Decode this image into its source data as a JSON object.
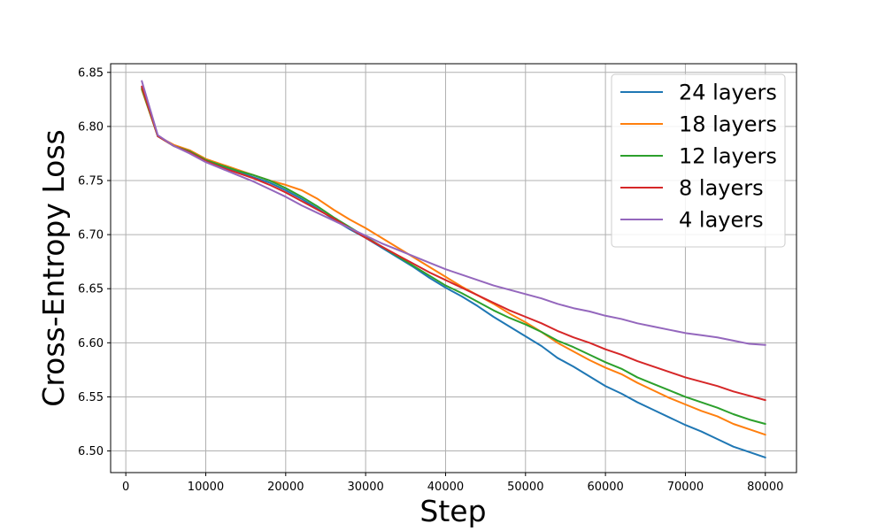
{
  "chart_data": {
    "type": "line",
    "title": "",
    "xlabel": "Step",
    "ylabel": "Cross-Entropy Loss",
    "xlim": [
      -1900,
      83900
    ],
    "ylim": [
      6.48,
      6.858
    ],
    "xticks": [
      0,
      10000,
      20000,
      30000,
      40000,
      50000,
      60000,
      70000,
      80000
    ],
    "yticks": [
      6.5,
      6.55,
      6.6,
      6.65,
      6.7,
      6.75,
      6.8,
      6.85
    ],
    "grid": true,
    "legend_position": "top-right",
    "x": [
      2000,
      4000,
      6000,
      8000,
      10000,
      12000,
      14000,
      16000,
      18000,
      20000,
      22000,
      24000,
      26000,
      28000,
      30000,
      32000,
      34000,
      36000,
      38000,
      40000,
      42000,
      44000,
      46000,
      48000,
      50000,
      52000,
      54000,
      56000,
      58000,
      60000,
      62000,
      64000,
      66000,
      68000,
      70000,
      72000,
      74000,
      76000,
      78000,
      80000
    ],
    "series": [
      {
        "name": "24 layers",
        "color": "#1f77b4",
        "values": [
          6.836,
          6.791,
          6.782,
          6.776,
          6.769,
          6.763,
          6.758,
          6.753,
          6.748,
          6.741,
          6.733,
          6.724,
          6.714,
          6.705,
          6.697,
          6.688,
          6.679,
          6.67,
          6.66,
          6.651,
          6.643,
          6.634,
          6.624,
          6.615,
          6.606,
          6.597,
          6.586,
          6.578,
          6.569,
          6.56,
          6.553,
          6.545,
          6.538,
          6.531,
          6.524,
          6.518,
          6.511,
          6.504,
          6.499,
          6.494
        ]
      },
      {
        "name": "18 layers",
        "color": "#ff7f0e",
        "values": [
          6.834,
          6.791,
          6.783,
          6.778,
          6.77,
          6.765,
          6.76,
          6.755,
          6.75,
          6.746,
          6.741,
          6.733,
          6.723,
          6.714,
          6.706,
          6.697,
          6.688,
          6.679,
          6.67,
          6.661,
          6.652,
          6.644,
          6.636,
          6.627,
          6.619,
          6.61,
          6.6,
          6.592,
          6.584,
          6.577,
          6.571,
          6.563,
          6.556,
          6.549,
          6.543,
          6.537,
          6.532,
          6.525,
          6.52,
          6.515
        ]
      },
      {
        "name": "12 layers",
        "color": "#2ca02c",
        "values": [
          6.835,
          6.791,
          6.782,
          6.777,
          6.769,
          6.764,
          6.759,
          6.755,
          6.75,
          6.743,
          6.735,
          6.726,
          6.716,
          6.707,
          6.698,
          6.689,
          6.68,
          6.671,
          6.662,
          6.653,
          6.646,
          6.638,
          6.63,
          6.623,
          6.617,
          6.61,
          6.602,
          6.596,
          6.589,
          6.582,
          6.576,
          6.568,
          6.562,
          6.556,
          6.55,
          6.545,
          6.54,
          6.534,
          6.529,
          6.525
        ]
      },
      {
        "name": "8 layers",
        "color": "#d62728",
        "values": [
          6.837,
          6.791,
          6.782,
          6.776,
          6.768,
          6.762,
          6.757,
          6.752,
          6.746,
          6.739,
          6.731,
          6.723,
          6.715,
          6.706,
          6.697,
          6.689,
          6.681,
          6.673,
          6.665,
          6.658,
          6.651,
          6.644,
          6.637,
          6.63,
          6.624,
          6.618,
          6.611,
          6.605,
          6.6,
          6.594,
          6.589,
          6.583,
          6.578,
          6.573,
          6.568,
          6.564,
          6.56,
          6.555,
          6.551,
          6.547
        ]
      },
      {
        "name": "4 layers",
        "color": "#9467bd",
        "values": [
          6.842,
          6.792,
          6.782,
          6.775,
          6.767,
          6.761,
          6.755,
          6.749,
          6.742,
          6.735,
          6.727,
          6.72,
          6.713,
          6.706,
          6.699,
          6.692,
          6.686,
          6.68,
          6.674,
          6.668,
          6.663,
          6.658,
          6.653,
          6.649,
          6.645,
          6.641,
          6.636,
          6.632,
          6.629,
          6.625,
          6.622,
          6.618,
          6.615,
          6.612,
          6.609,
          6.607,
          6.605,
          6.602,
          6.599,
          6.598
        ]
      }
    ]
  }
}
